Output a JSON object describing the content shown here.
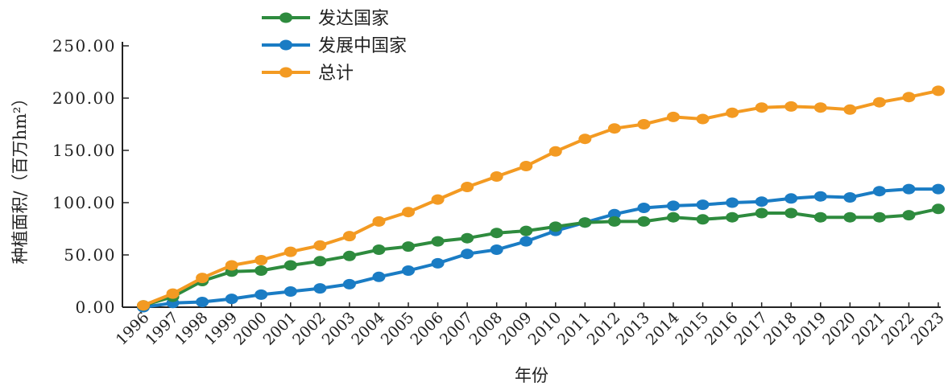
{
  "chart_data": {
    "type": "line",
    "title": "",
    "xlabel": "年份",
    "ylabel": "种植面积/（百万hm²）",
    "ylim": [
      0,
      250
    ],
    "yticks": [
      "0.00",
      "50.00",
      "100.00",
      "150.00",
      "200.00",
      "250.00"
    ],
    "ytick_values": [
      0,
      50,
      100,
      150,
      200,
      250
    ],
    "grid": false,
    "legend_position": "top-center",
    "x": [
      "1996",
      "1997",
      "1998",
      "1999",
      "2000",
      "2001",
      "2002",
      "2003",
      "2004",
      "2005",
      "2006",
      "2007",
      "2008",
      "2009",
      "2010",
      "2011",
      "2012",
      "2013",
      "2014",
      "2015",
      "2016",
      "2017",
      "2018",
      "2019",
      "2020",
      "2021",
      "2022",
      "2023"
    ],
    "series": [
      {
        "name": "发达国家",
        "color": "#2e8b3e",
        "values": [
          1.7,
          10,
          25,
          34,
          35,
          40,
          44,
          49,
          55,
          58,
          63,
          66,
          71,
          73,
          77,
          81,
          82,
          82,
          86,
          84,
          86,
          90,
          90,
          86,
          86,
          86,
          88,
          94
        ]
      },
      {
        "name": "发展中国家",
        "color": "#1a7cc4",
        "values": [
          0,
          4,
          5,
          8,
          12,
          15,
          18,
          22,
          29,
          35,
          42,
          51,
          55,
          63,
          73,
          81,
          89,
          95,
          97,
          98,
          100,
          101,
          104,
          106,
          105,
          111,
          113,
          113
        ]
      },
      {
        "name": "总计",
        "color": "#f39a22",
        "values": [
          1.7,
          13,
          28,
          40,
          45,
          53,
          59,
          68,
          82,
          91,
          103,
          115,
          125,
          135,
          149,
          161,
          171,
          175,
          182,
          180,
          186,
          191,
          192,
          191,
          189,
          196,
          201,
          207
        ]
      }
    ]
  }
}
